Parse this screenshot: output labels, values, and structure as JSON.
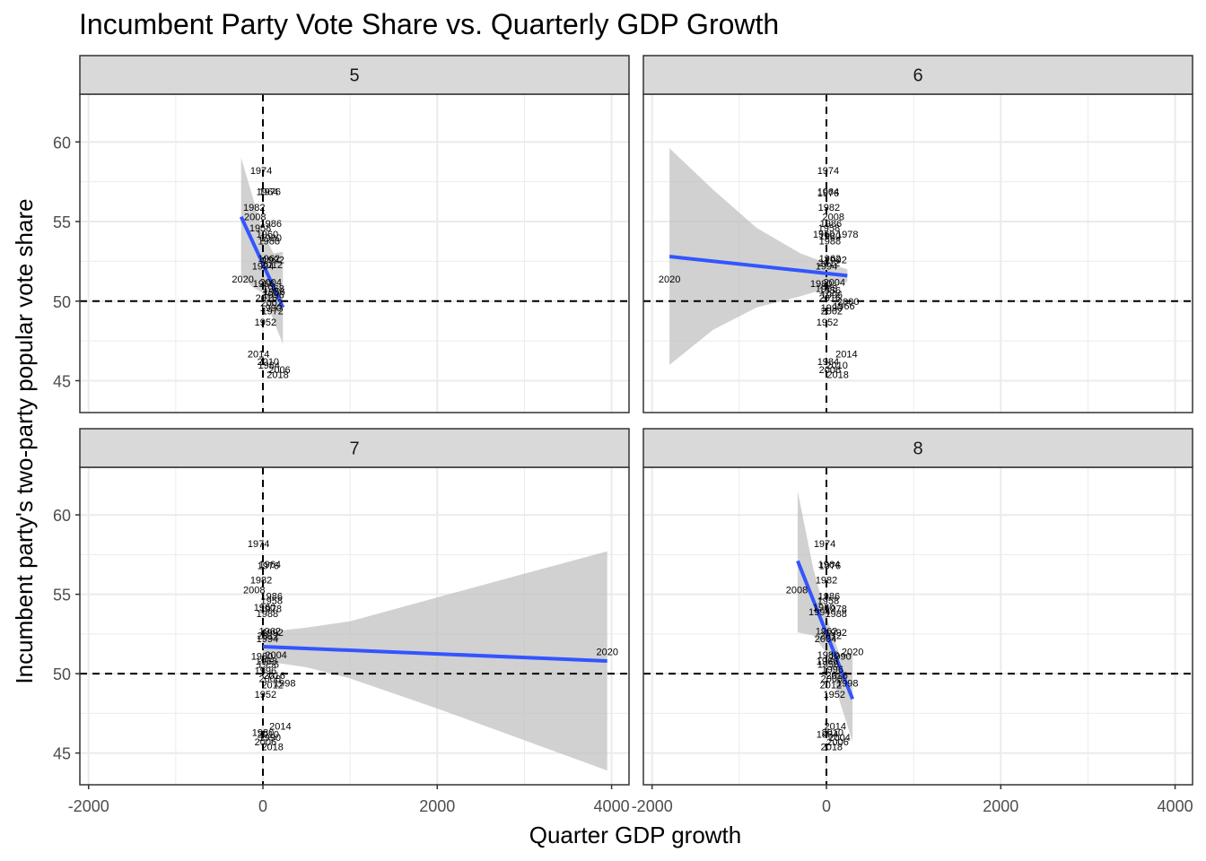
{
  "chart_data": {
    "type": "scatter",
    "title": "Incumbent Party Vote Share vs. Quarterly GDP Growth",
    "xlabel": "Quarter GDP growth",
    "ylabel": "Incumbent party's two-party popular vote share",
    "xlim": [
      -2100,
      4200
    ],
    "ylim": [
      43,
      63
    ],
    "x_ticks": [
      -2000,
      0,
      2000,
      4000
    ],
    "x_tick_labels": [
      "-2000",
      "0",
      "2000",
      "4000"
    ],
    "y_ticks": [
      45,
      50,
      55,
      60
    ],
    "y_tick_labels": [
      "45",
      "50",
      "55",
      "60"
    ],
    "grid": true,
    "reference_lines": {
      "x": 0,
      "y": 50,
      "style": "dashed"
    },
    "point_labels": "year",
    "facet_by": "quarter",
    "colors": {
      "fit_line": "#3355ff",
      "ribbon": "#bebebe",
      "strip_fill": "#d9d9d9",
      "grid": "#ebebeb",
      "panel_border": "#333333"
    },
    "panels": [
      {
        "facet": "5",
        "fit": {
          "x": [
            -250,
            230
          ],
          "y": [
            55.3,
            49.6
          ]
        },
        "ribbon": {
          "x": [
            -250,
            -120,
            0,
            120,
            230
          ],
          "upper": [
            59.0,
            56.6,
            54.3,
            53.0,
            53.1
          ],
          "lower": [
            51.6,
            50.9,
            50.5,
            48.8,
            47.3
          ]
        },
        "points": [
          {
            "label": "1974",
            "x": -20,
            "y": 58.2
          },
          {
            "label": "1964",
            "x": 50,
            "y": 56.9
          },
          {
            "label": "1976",
            "x": 80,
            "y": 56.9
          },
          {
            "label": "1982",
            "x": -100,
            "y": 55.9
          },
          {
            "label": "2008",
            "x": -90,
            "y": 55.3
          },
          {
            "label": "1986",
            "x": 90,
            "y": 54.9
          },
          {
            "label": "1958",
            "x": -30,
            "y": 54.6
          },
          {
            "label": "1960",
            "x": 50,
            "y": 54.2
          },
          {
            "label": "1980",
            "x": 90,
            "y": 54.0
          },
          {
            "label": "1988",
            "x": 70,
            "y": 53.8
          },
          {
            "label": "1962",
            "x": 70,
            "y": 52.7
          },
          {
            "label": "1992",
            "x": 120,
            "y": 52.6
          },
          {
            "label": "2012",
            "x": 100,
            "y": 52.3
          },
          {
            "label": "1994",
            "x": 0,
            "y": 52.2
          },
          {
            "label": "2020",
            "x": -230,
            "y": 51.4
          },
          {
            "label": "1966",
            "x": 10,
            "y": 51.1
          },
          {
            "label": "2004",
            "x": 90,
            "y": 51.2
          },
          {
            "label": "1968",
            "x": 120,
            "y": 50.8
          },
          {
            "label": "1956",
            "x": 130,
            "y": 50.6
          },
          {
            "label": "1996",
            "x": 120,
            "y": 50.4
          },
          {
            "label": "2016",
            "x": 40,
            "y": 50.2
          },
          {
            "label": "2002",
            "x": 100,
            "y": 49.9
          },
          {
            "label": "1990",
            "x": 90,
            "y": 49.6
          },
          {
            "label": "1972",
            "x": 110,
            "y": 49.4
          },
          {
            "label": "1952",
            "x": 30,
            "y": 48.7
          },
          {
            "label": "2014",
            "x": -50,
            "y": 46.7
          },
          {
            "label": "2010",
            "x": 60,
            "y": 46.2
          },
          {
            "label": "1984",
            "x": 70,
            "y": 46.0
          },
          {
            "label": "2006",
            "x": 190,
            "y": 45.7
          },
          {
            "label": "2018",
            "x": 170,
            "y": 45.4
          }
        ]
      },
      {
        "facet": "6",
        "fit": {
          "x": [
            -1800,
            240
          ],
          "y": [
            52.8,
            51.6
          ]
        },
        "ribbon": {
          "x": [
            -1800,
            -1300,
            -800,
            -300,
            0,
            240
          ],
          "upper": [
            59.6,
            57.0,
            54.6,
            53.0,
            52.4,
            52.0
          ],
          "lower": [
            46.0,
            48.2,
            49.6,
            50.3,
            50.8,
            51.2
          ]
        },
        "points": [
          {
            "label": "1974",
            "x": 20,
            "y": 58.2
          },
          {
            "label": "1964",
            "x": 20,
            "y": 56.9
          },
          {
            "label": "1976",
            "x": 20,
            "y": 56.8
          },
          {
            "label": "1982",
            "x": 30,
            "y": 55.9
          },
          {
            "label": "2008",
            "x": 80,
            "y": 55.3
          },
          {
            "label": "1986",
            "x": 50,
            "y": 54.9
          },
          {
            "label": "1958",
            "x": 30,
            "y": 54.6
          },
          {
            "label": "1960",
            "x": -30,
            "y": 54.2
          },
          {
            "label": "1980",
            "x": 40,
            "y": 54.1
          },
          {
            "label": "1978",
            "x": 240,
            "y": 54.2
          },
          {
            "label": "1988",
            "x": 40,
            "y": 53.8
          },
          {
            "label": "1962",
            "x": 40,
            "y": 52.7
          },
          {
            "label": "1992",
            "x": 110,
            "y": 52.6
          },
          {
            "label": "2012",
            "x": 30,
            "y": 52.4
          },
          {
            "label": "1994",
            "x": 0,
            "y": 52.2
          },
          {
            "label": "2020",
            "x": -1800,
            "y": 51.4
          },
          {
            "label": "1980",
            "x": -60,
            "y": 51.1
          },
          {
            "label": "2004",
            "x": 90,
            "y": 51.2
          },
          {
            "label": "1968",
            "x": 0,
            "y": 50.8
          },
          {
            "label": "1956",
            "x": 40,
            "y": 50.7
          },
          {
            "label": "1996",
            "x": 60,
            "y": 50.4
          },
          {
            "label": "2016",
            "x": 40,
            "y": 50.2
          },
          {
            "label": "2000",
            "x": 250,
            "y": 50.0
          },
          {
            "label": "1966",
            "x": 200,
            "y": 49.7
          },
          {
            "label": "1990",
            "x": 60,
            "y": 49.6
          },
          {
            "label": "2002",
            "x": 60,
            "y": 49.4
          },
          {
            "label": "1952",
            "x": 10,
            "y": 48.7
          },
          {
            "label": "2014",
            "x": 230,
            "y": 46.7
          },
          {
            "label": "1984",
            "x": 20,
            "y": 46.2
          },
          {
            "label": "2010",
            "x": 120,
            "y": 46.0
          },
          {
            "label": "2006",
            "x": 40,
            "y": 45.7
          },
          {
            "label": "2018",
            "x": 130,
            "y": 45.4
          }
        ]
      },
      {
        "facet": "7",
        "fit": {
          "x": [
            0,
            3950
          ],
          "y": [
            51.7,
            50.8
          ]
        },
        "ribbon": {
          "x": [
            0,
            500,
            1000,
            2000,
            3000,
            3950
          ],
          "upper": [
            52.6,
            52.9,
            53.3,
            54.8,
            56.3,
            57.7
          ],
          "lower": [
            50.8,
            50.4,
            49.7,
            47.8,
            45.8,
            43.9
          ]
        },
        "points": [
          {
            "label": "1974",
            "x": -50,
            "y": 58.2
          },
          {
            "label": "1964",
            "x": 80,
            "y": 56.9
          },
          {
            "label": "1976",
            "x": 60,
            "y": 56.8
          },
          {
            "label": "1982",
            "x": -20,
            "y": 55.9
          },
          {
            "label": "2008",
            "x": -100,
            "y": 55.3
          },
          {
            "label": "1986",
            "x": 100,
            "y": 54.9
          },
          {
            "label": "1958",
            "x": 100,
            "y": 54.6
          },
          {
            "label": "1960",
            "x": 20,
            "y": 54.2
          },
          {
            "label": "1978",
            "x": 90,
            "y": 54.1
          },
          {
            "label": "1988",
            "x": 50,
            "y": 53.8
          },
          {
            "label": "1962",
            "x": 80,
            "y": 52.7
          },
          {
            "label": "1992",
            "x": 110,
            "y": 52.6
          },
          {
            "label": "2012",
            "x": 60,
            "y": 52.4
          },
          {
            "label": "1994",
            "x": 50,
            "y": 52.2
          },
          {
            "label": "2020",
            "x": 3950,
            "y": 51.4
          },
          {
            "label": "1980",
            "x": -10,
            "y": 51.1
          },
          {
            "label": "2004",
            "x": 150,
            "y": 51.2
          },
          {
            "label": "1968",
            "x": 40,
            "y": 50.8
          },
          {
            "label": "1956",
            "x": 60,
            "y": 50.6
          },
          {
            "label": "1996",
            "x": 30,
            "y": 50.2
          },
          {
            "label": "2016",
            "x": 130,
            "y": 49.9
          },
          {
            "label": "2000",
            "x": 80,
            "y": 49.7
          },
          {
            "label": "1998",
            "x": 250,
            "y": 49.4
          },
          {
            "label": "2012",
            "x": 110,
            "y": 49.3
          },
          {
            "label": "1952",
            "x": 30,
            "y": 48.7
          },
          {
            "label": "2014",
            "x": 200,
            "y": 46.7
          },
          {
            "label": "1980",
            "x": 0,
            "y": 46.3
          },
          {
            "label": "2010",
            "x": 60,
            "y": 46.2
          },
          {
            "label": "1990",
            "x": 80,
            "y": 46.0
          },
          {
            "label": "2006",
            "x": 30,
            "y": 45.7
          },
          {
            "label": "2018",
            "x": 110,
            "y": 45.4
          }
        ]
      },
      {
        "facet": "8",
        "fit": {
          "x": [
            -330,
            300
          ],
          "y": [
            57.1,
            48.4
          ]
        },
        "ribbon": {
          "x": [
            -330,
            -150,
            0,
            150,
            300
          ],
          "upper": [
            61.5,
            56.6,
            53.6,
            51.2,
            51.2
          ],
          "lower": [
            52.6,
            52.4,
            51.3,
            48.3,
            45.7
          ]
        },
        "points": [
          {
            "label": "1974",
            "x": -20,
            "y": 58.2
          },
          {
            "label": "1964",
            "x": 30,
            "y": 56.9
          },
          {
            "label": "1976",
            "x": 40,
            "y": 56.8
          },
          {
            "label": "1982",
            "x": 0,
            "y": 55.9
          },
          {
            "label": "2008",
            "x": -340,
            "y": 55.3
          },
          {
            "label": "1986",
            "x": 30,
            "y": 54.9
          },
          {
            "label": "1958",
            "x": 20,
            "y": 54.6
          },
          {
            "label": "1960",
            "x": -30,
            "y": 54.2
          },
          {
            "label": "1978",
            "x": 110,
            "y": 54.1
          },
          {
            "label": "1988",
            "x": 110,
            "y": 53.8
          },
          {
            "label": "1994",
            "x": -80,
            "y": 53.9
          },
          {
            "label": "1962",
            "x": 0,
            "y": 52.7
          },
          {
            "label": "1992",
            "x": 110,
            "y": 52.6
          },
          {
            "label": "2012",
            "x": 50,
            "y": 52.4
          },
          {
            "label": "2004",
            "x": -10,
            "y": 52.2
          },
          {
            "label": "2020",
            "x": 300,
            "y": 51.4
          },
          {
            "label": "1980",
            "x": 20,
            "y": 51.2
          },
          {
            "label": "1990",
            "x": 160,
            "y": 51.1
          },
          {
            "label": "1966",
            "x": 10,
            "y": 50.8
          },
          {
            "label": "1956",
            "x": 20,
            "y": 50.6
          },
          {
            "label": "1996",
            "x": 70,
            "y": 50.3
          },
          {
            "label": "2016",
            "x": 120,
            "y": 49.9
          },
          {
            "label": "2000",
            "x": 60,
            "y": 49.7
          },
          {
            "label": "1998",
            "x": 240,
            "y": 49.4
          },
          {
            "label": "2012",
            "x": 50,
            "y": 49.3
          },
          {
            "label": "1952",
            "x": 90,
            "y": 48.7
          },
          {
            "label": "2014",
            "x": 100,
            "y": 46.7
          },
          {
            "label": "2010",
            "x": 70,
            "y": 46.3
          },
          {
            "label": "1984",
            "x": 10,
            "y": 46.2
          },
          {
            "label": "2004",
            "x": 150,
            "y": 46.0
          },
          {
            "label": "2006",
            "x": 130,
            "y": 45.7
          },
          {
            "label": "2018",
            "x": 60,
            "y": 45.4
          }
        ]
      }
    ]
  }
}
